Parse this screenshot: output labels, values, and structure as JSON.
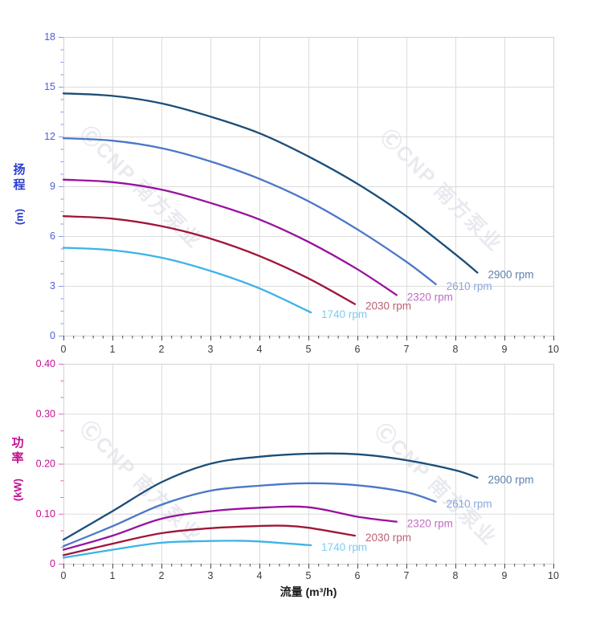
{
  "watermark": {
    "text": "ⒸCNP 南方泵业"
  },
  "chart_data": [
    {
      "id": "head",
      "type": "line",
      "title": "",
      "ylabel": "扬程",
      "ylabel_unit": "(m)",
      "xlabel": "",
      "xlim": [
        0,
        10
      ],
      "ylim": [
        0,
        18
      ],
      "grid": true,
      "legend_position": "curve-end-labels",
      "x_tick_labels": [
        "0",
        "1",
        "2",
        "3",
        "4",
        "5",
        "6",
        "7",
        "8",
        "9",
        "10"
      ],
      "x_tick_values": [
        0,
        1,
        2,
        3,
        4,
        5,
        6,
        7,
        8,
        9,
        10
      ],
      "x_minor_step": 0.2,
      "y_tick_labels": [
        "0",
        "3",
        "6",
        "9",
        "12",
        "15",
        "18"
      ],
      "y_tick_values": [
        0,
        3,
        6,
        9,
        12,
        15,
        18
      ],
      "y_minor_step": 0.75,
      "axis_title_color": "#2b3ed0",
      "y_tick_text_color": "#4a5fd8",
      "y_tick_mark_color": "#8b9ae8",
      "x_tick_text_color": "#3c3c3c",
      "x_tick_mark_color": "#4a4a4a",
      "grid_color": "#dcdcdc",
      "border_color": "#d2d2d2",
      "series": [
        {
          "name": "2900 rpm",
          "label": "2900 rpm",
          "color": "#1b4e79",
          "label_color": "#5d80a9",
          "points": [
            [
              0,
              14.6
            ],
            [
              1,
              14.45
            ],
            [
              2,
              14.0
            ],
            [
              3,
              13.2
            ],
            [
              4,
              12.2
            ],
            [
              5,
              10.8
            ],
            [
              6,
              9.15
            ],
            [
              7,
              7.2
            ],
            [
              8,
              4.9
            ],
            [
              8.45,
              3.8
            ]
          ]
        },
        {
          "name": "2610 rpm",
          "label": "2610 rpm",
          "color": "#4a77c9",
          "label_color": "#8aa6dd",
          "points": [
            [
              0,
              11.9
            ],
            [
              1,
              11.75
            ],
            [
              2,
              11.3
            ],
            [
              3,
              10.5
            ],
            [
              4,
              9.45
            ],
            [
              5,
              8.1
            ],
            [
              6,
              6.4
            ],
            [
              7,
              4.45
            ],
            [
              7.6,
              3.1
            ]
          ]
        },
        {
          "name": "2320 rpm",
          "label": "2320 rpm",
          "color": "#99119e",
          "label_color": "#c06cc4",
          "points": [
            [
              0,
              9.4
            ],
            [
              1,
              9.25
            ],
            [
              2,
              8.8
            ],
            [
              3,
              8.0
            ],
            [
              4,
              7.0
            ],
            [
              5,
              5.65
            ],
            [
              6,
              4.0
            ],
            [
              6.8,
              2.45
            ]
          ]
        },
        {
          "name": "2030 rpm",
          "label": "2030 rpm",
          "color": "#a11538",
          "label_color": "#bb6072",
          "points": [
            [
              0,
              7.2
            ],
            [
              1,
              7.05
            ],
            [
              2,
              6.6
            ],
            [
              3,
              5.85
            ],
            [
              4,
              4.8
            ],
            [
              5,
              3.45
            ],
            [
              5.95,
              1.9
            ]
          ]
        },
        {
          "name": "1740 rpm",
          "label": "1740 rpm",
          "color": "#3db3e8",
          "label_color": "#7ecdf1",
          "points": [
            [
              0,
              5.3
            ],
            [
              1,
              5.15
            ],
            [
              2,
              4.7
            ],
            [
              3,
              3.9
            ],
            [
              4,
              2.85
            ],
            [
              5.05,
              1.4
            ]
          ]
        }
      ]
    },
    {
      "id": "power",
      "type": "line",
      "title": "",
      "ylabel": "功率",
      "ylabel_unit": "(kW)",
      "xlabel": "流量 (m³/h)",
      "xlim": [
        0,
        10
      ],
      "ylim": [
        0,
        0.4
      ],
      "grid": true,
      "legend_position": "curve-end-labels",
      "x_tick_labels": [
        "0",
        "1",
        "2",
        "3",
        "4",
        "5",
        "6",
        "7",
        "8",
        "9",
        "10"
      ],
      "x_tick_values": [
        0,
        1,
        2,
        3,
        4,
        5,
        6,
        7,
        8,
        9,
        10
      ],
      "x_minor_step": 0.2,
      "y_tick_labels": [
        "0",
        "0.10",
        "0.20",
        "0.30",
        "0.40"
      ],
      "y_tick_values": [
        0,
        0.1,
        0.2,
        0.3,
        0.4
      ],
      "y_minor_step": 0.03333,
      "axis_title_color": "#c40d92",
      "y_tick_text_color": "#c40d92",
      "y_tick_mark_color": "#d863ba",
      "x_tick_text_color": "#3c3c3c",
      "x_tick_mark_color": "#4a4a4a",
      "grid_color": "#dcdcdc",
      "border_color": "#d2d2d2",
      "series": [
        {
          "name": "2900 rpm",
          "label": "2900 rpm",
          "color": "#1b4e79",
          "label_color": "#5d80a9",
          "points": [
            [
              0,
              0.048
            ],
            [
              1,
              0.105
            ],
            [
              2,
              0.163
            ],
            [
              3,
              0.2
            ],
            [
              4,
              0.214
            ],
            [
              5,
              0.22
            ],
            [
              6,
              0.219
            ],
            [
              7,
              0.207
            ],
            [
              8,
              0.187
            ],
            [
              8.45,
              0.172
            ]
          ]
        },
        {
          "name": "2610 rpm",
          "label": "2610 rpm",
          "color": "#4a77c9",
          "label_color": "#8aa6dd",
          "points": [
            [
              0,
              0.035
            ],
            [
              1,
              0.075
            ],
            [
              2,
              0.118
            ],
            [
              3,
              0.146
            ],
            [
              4,
              0.156
            ],
            [
              5,
              0.161
            ],
            [
              6,
              0.157
            ],
            [
              7,
              0.143
            ],
            [
              7.6,
              0.124
            ]
          ]
        },
        {
          "name": "2320 rpm",
          "label": "2320 rpm",
          "color": "#99119e",
          "label_color": "#c06cc4",
          "points": [
            [
              0,
              0.028
            ],
            [
              1,
              0.056
            ],
            [
              2,
              0.09
            ],
            [
              3,
              0.105
            ],
            [
              4,
              0.112
            ],
            [
              5,
              0.113
            ],
            [
              6,
              0.094
            ],
            [
              6.8,
              0.084
            ]
          ]
        },
        {
          "name": "2030 rpm",
          "label": "2030 rpm",
          "color": "#a11538",
          "label_color": "#bb6072",
          "points": [
            [
              0,
              0.017
            ],
            [
              1,
              0.04
            ],
            [
              2,
              0.061
            ],
            [
              3,
              0.071
            ],
            [
              4,
              0.0755
            ],
            [
              4.5,
              0.076
            ],
            [
              5,
              0.072
            ],
            [
              5.95,
              0.056
            ]
          ]
        },
        {
          "name": "1740 rpm",
          "label": "1740 rpm",
          "color": "#3db3e8",
          "label_color": "#7ecdf1",
          "points": [
            [
              0,
              0.012
            ],
            [
              1,
              0.028
            ],
            [
              2,
              0.042
            ],
            [
              3,
              0.0455
            ],
            [
              3.5,
              0.046
            ],
            [
              4,
              0.0445
            ],
            [
              5.05,
              0.037
            ]
          ]
        }
      ]
    }
  ]
}
